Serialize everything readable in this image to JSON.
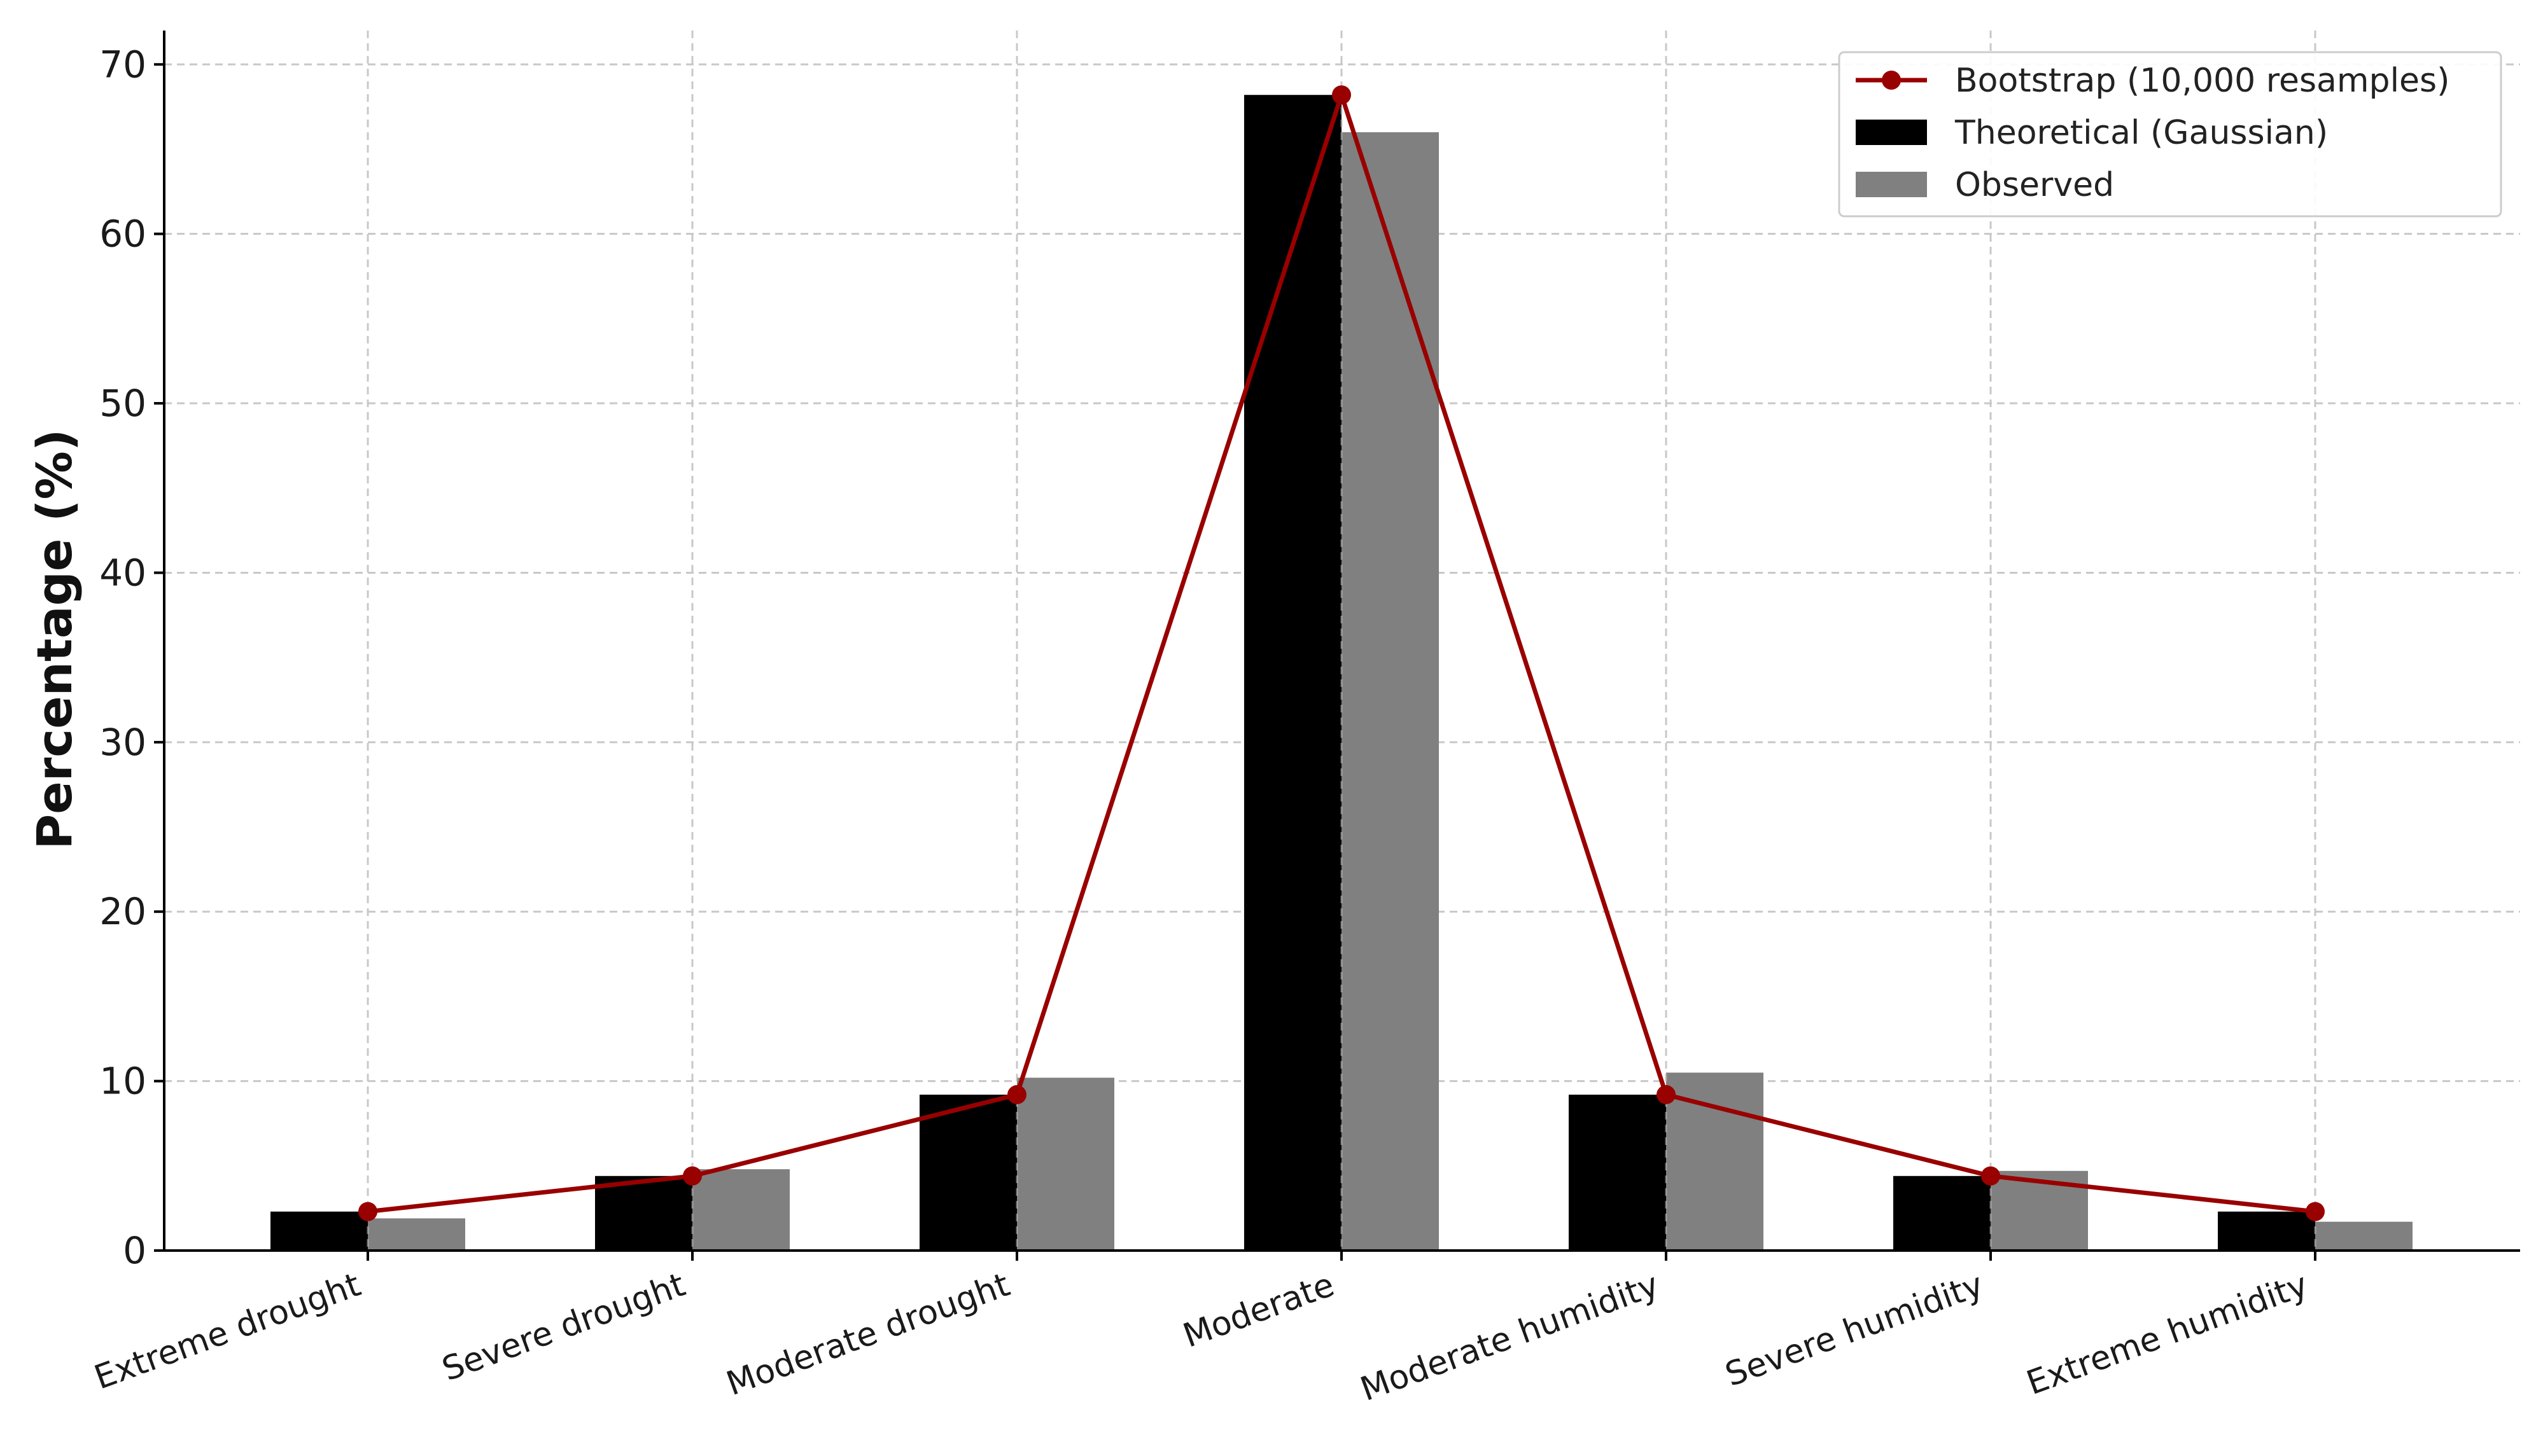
{
  "chart_data": {
    "type": "bar",
    "title": "",
    "xlabel": "",
    "ylabel": "Percentage (%)",
    "ylim": [
      0,
      72
    ],
    "yticks": [
      0,
      10,
      20,
      30,
      40,
      50,
      60,
      70
    ],
    "grid": true,
    "legend_position": "top-right",
    "categories": [
      "Extreme drought",
      "Severe drought",
      "Moderate drought",
      "Moderate",
      "Moderate humidity",
      "Severe humidity",
      "Extreme humidity"
    ],
    "series": [
      {
        "name": "Theoretical (Gaussian)",
        "kind": "bar",
        "color": "#000000",
        "values": [
          2.3,
          4.4,
          9.2,
          68.2,
          9.2,
          4.4,
          2.3
        ]
      },
      {
        "name": "Observed",
        "kind": "bar",
        "color": "#808080",
        "values": [
          1.9,
          4.8,
          10.2,
          66.0,
          10.5,
          4.7,
          1.7
        ]
      },
      {
        "name": "Bootstrap (10,000 resamples)",
        "kind": "line",
        "color": "#990000",
        "values": [
          2.3,
          4.4,
          9.2,
          68.2,
          9.2,
          4.4,
          2.3
        ]
      }
    ],
    "legend_order": [
      "Bootstrap (10,000 resamples)",
      "Theoretical (Gaussian)",
      "Observed"
    ]
  }
}
